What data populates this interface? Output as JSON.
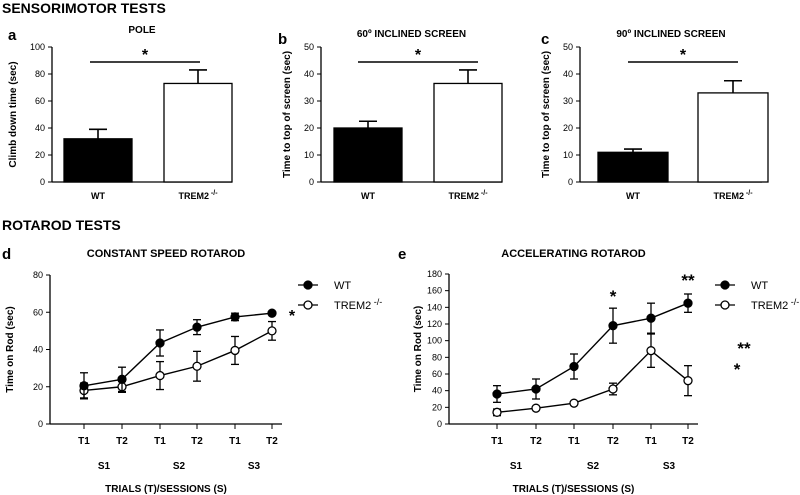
{
  "sections": {
    "top": "SENSORIMOTOR TESTS",
    "bottom": "ROTAROD TESTS"
  },
  "colors": {
    "filled": "#000000",
    "open": "#ffffff",
    "line": "#000000"
  },
  "chart_data": [
    {
      "panel": "a",
      "type": "bar",
      "title": "POLE",
      "categories": [
        "WT",
        "TREM2 -/-"
      ],
      "values": [
        32,
        73
      ],
      "errors": [
        7,
        10
      ],
      "ylabel": "Climb down time (sec)",
      "ylim": [
        0,
        100
      ],
      "yticks": [
        0,
        20,
        40,
        60,
        80,
        100
      ],
      "annotation": "*"
    },
    {
      "panel": "b",
      "type": "bar",
      "title": "60º INCLINED SCREEN",
      "categories": [
        "WT",
        "TREM2 -/-"
      ],
      "values": [
        20,
        36.5
      ],
      "errors": [
        2.5,
        5
      ],
      "ylabel": "Time to top of screen (sec)",
      "ylim": [
        0,
        50
      ],
      "yticks": [
        0,
        10,
        20,
        30,
        40,
        50
      ],
      "annotation": "*"
    },
    {
      "panel": "c",
      "type": "bar",
      "title": "90º INCLINED SCREEN",
      "categories": [
        "WT",
        "TREM2 -/-"
      ],
      "values": [
        11,
        33
      ],
      "errors": [
        1.2,
        4.5
      ],
      "ylabel": "Time to top of screen (sec)",
      "ylim": [
        0,
        50
      ],
      "yticks": [
        0,
        10,
        20,
        30,
        40,
        50
      ],
      "annotation": "*"
    },
    {
      "panel": "d",
      "type": "line",
      "title": "CONSTANT SPEED ROTAROD",
      "x": [
        "T1",
        "T2",
        "T1",
        "T2",
        "T1",
        "T2"
      ],
      "sessions": [
        "S1",
        "S2",
        "S3"
      ],
      "xlabel": "TRIALS (T)/SESSIONS (S)",
      "ylabel": "Time on Rod (sec)",
      "ylim": [
        0,
        80
      ],
      "yticks": [
        0,
        20,
        40,
        60,
        80
      ],
      "series": [
        {
          "name": "WT",
          "marker": "filled",
          "values": [
            20.5,
            24,
            43.5,
            52,
            57.5,
            59.5
          ],
          "errors": [
            7,
            6.5,
            7,
            4,
            2,
            0.5
          ]
        },
        {
          "name": "TREM2 -/-",
          "marker": "open",
          "values": [
            18,
            20,
            26,
            31,
            39.5,
            50
          ],
          "errors": [
            4,
            3,
            7.5,
            8,
            7.5,
            5
          ]
        }
      ],
      "annotations": [
        {
          "text": "*",
          "at": "end"
        }
      ]
    },
    {
      "panel": "e",
      "type": "line",
      "title": "ACCELERATING ROTAROD",
      "x": [
        "T1",
        "T2",
        "T1",
        "T2",
        "T1",
        "T2"
      ],
      "sessions": [
        "S1",
        "S2",
        "S3"
      ],
      "xlabel": "TRIALS (T)/SESSIONS (S)",
      "ylabel": "Time on Rod (sec)",
      "ylim": [
        0,
        180
      ],
      "yticks": [
        0,
        20,
        40,
        60,
        80,
        100,
        120,
        140,
        160,
        180
      ],
      "series": [
        {
          "name": "WT",
          "marker": "filled",
          "values": [
            36,
            42,
            69,
            118,
            127,
            145
          ],
          "errors": [
            10,
            12,
            15,
            21,
            18,
            11
          ]
        },
        {
          "name": "TREM2 -/-",
          "marker": "open",
          "values": [
            14,
            19,
            25,
            42,
            88,
            52
          ],
          "errors": [
            4,
            2,
            2,
            7,
            20,
            18
          ]
        }
      ],
      "annotations": [
        {
          "text": "*",
          "at": "T2-S2"
        },
        {
          "text": "**",
          "at": "T2-S3"
        },
        {
          "text": "**",
          "at": "side-1"
        },
        {
          "text": "*",
          "at": "side-2"
        }
      ]
    }
  ]
}
